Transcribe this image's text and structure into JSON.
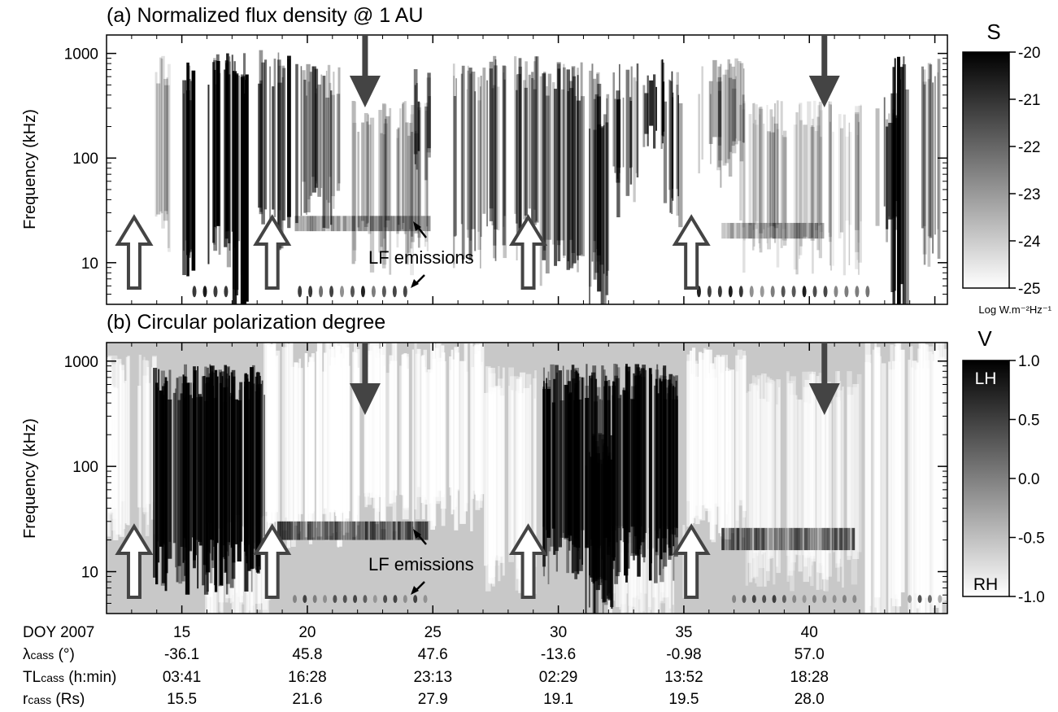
{
  "chart_data": [
    {
      "type": "heatmap",
      "title": "(a) Normalized flux density @ 1 AU",
      "ylabel": "Frequency (kHz)",
      "y_scale": "log",
      "ylim": [
        4,
        1500
      ],
      "yticks": [
        {
          "label": "1000",
          "value": 1000
        },
        {
          "label": "100",
          "value": 100
        },
        {
          "label": "10",
          "value": 10
        }
      ],
      "xlim": [
        12,
        45.5
      ],
      "colorbar": {
        "title": "S",
        "unit": "Log W.m⁻²Hz⁻¹",
        "range": [
          -25,
          -20
        ],
        "ticks": [
          {
            "label": "-20",
            "value": -20
          },
          {
            "label": "-21",
            "value": -21
          },
          {
            "label": "-22",
            "value": -22
          },
          {
            "label": "-23",
            "value": -23
          },
          {
            "label": "-24",
            "value": -24
          },
          {
            "label": "-25",
            "value": -25
          }
        ],
        "palette": [
          "#ffffff",
          "#000000"
        ]
      },
      "annotation": "LF emissions",
      "down_arrows_doy": [
        22.3,
        40.6
      ],
      "up_arrows_doy": [
        13.1,
        18.6,
        28.8,
        35.3
      ]
    },
    {
      "type": "heatmap",
      "title": "(b) Circular polarization degree",
      "ylabel": "Frequency (kHz)",
      "y_scale": "log",
      "ylim": [
        4,
        1500
      ],
      "yticks": [
        {
          "label": "1000",
          "value": 1000
        },
        {
          "label": "100",
          "value": 100
        },
        {
          "label": "10",
          "value": 10
        }
      ],
      "xlim": [
        12,
        45.5
      ],
      "background": "#c8c8c8",
      "colorbar": {
        "title": "V",
        "range": [
          -1.0,
          1.0
        ],
        "ticks": [
          {
            "label": "1.0",
            "value": 1.0
          },
          {
            "label": "0.5",
            "value": 0.5
          },
          {
            "label": "0.0",
            "value": 0.0
          },
          {
            "label": "-0.5",
            "value": -0.5
          },
          {
            "label": "-1.0",
            "value": -1.0
          }
        ],
        "top_label": "LH",
        "bottom_label": "RH",
        "palette": [
          "#ffffff",
          "#000000"
        ]
      },
      "annotation": "LF emissions",
      "down_arrows_doy": [
        22.3,
        40.6
      ],
      "up_arrows_doy": [
        13.1,
        18.6,
        28.8,
        35.3
      ]
    }
  ],
  "ephemeris": {
    "rows": [
      {
        "label": "DOY 2007",
        "values": [
          "15",
          "20",
          "25",
          "30",
          "35",
          "40"
        ]
      },
      {
        "label_main": "λ",
        "label_sub": "cass",
        "label_rest": " (°)",
        "values": [
          "-36.1",
          "45.8",
          "47.6",
          "-13.6",
          "-0.98",
          "57.0"
        ]
      },
      {
        "label_main": "TL",
        "label_sub": "cass",
        "label_rest": " (h:min)",
        "values": [
          "03:41",
          "16:28",
          "23:13",
          "02:29",
          "13:52",
          "18:28"
        ]
      },
      {
        "label_main": "r",
        "label_sub": "cass",
        "label_rest": " (Rs)",
        "values": [
          "15.5",
          "21.6",
          "27.9",
          "19.1",
          "19.5",
          "28.0"
        ]
      }
    ],
    "doy_positions": [
      15,
      20,
      25,
      30,
      35,
      40
    ]
  }
}
